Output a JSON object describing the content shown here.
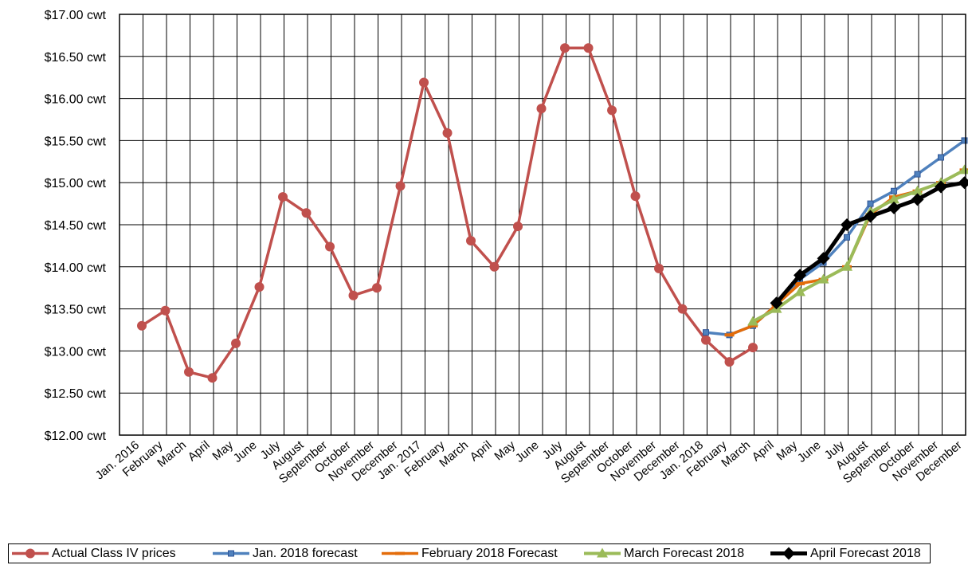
{
  "chart_data": {
    "type": "line",
    "categories": [
      "Jan. 2016",
      "February",
      "March",
      "April",
      "May",
      "June",
      "July",
      "August",
      "September",
      "October",
      "November",
      "December",
      "Jan. 2017",
      "February",
      "March",
      "April",
      "May",
      "June",
      "July",
      "August",
      "September",
      "October",
      "November",
      "December",
      "Jan. 2018",
      "February",
      "March",
      "April",
      "May",
      "June",
      "July",
      "August",
      "September",
      "October",
      "November",
      "December"
    ],
    "yticks": [
      "$12.00 cwt",
      "$12.50 cwt",
      "$13.00 cwt",
      "$13.50 cwt",
      "$14.00 cwt",
      "$14.50 cwt",
      "$15.00 cwt",
      "$15.50 cwt",
      "$16.00 cwt",
      "$16.50 cwt",
      "$17.00 cwt"
    ],
    "ylim": [
      12.0,
      17.0
    ],
    "ystep": 0.5,
    "grid": true,
    "legend_position": "bottom",
    "series": [
      {
        "name": "Actual Class IV prices",
        "color": "#C0504D",
        "marker": "circle",
        "values": [
          13.3,
          13.48,
          12.75,
          12.68,
          13.09,
          13.76,
          14.83,
          14.64,
          14.24,
          13.66,
          13.75,
          14.96,
          16.19,
          15.59,
          14.31,
          14.0,
          14.48,
          15.88,
          16.6,
          16.6,
          15.86,
          14.84,
          13.98,
          13.5,
          13.13,
          12.87,
          13.04,
          null,
          null,
          null,
          null,
          null,
          null,
          null,
          null,
          null
        ]
      },
      {
        "name": "Jan. 2018 forecast",
        "color": "#4F81BD",
        "marker": "square",
        "values": [
          null,
          null,
          null,
          null,
          null,
          null,
          null,
          null,
          null,
          null,
          null,
          null,
          null,
          null,
          null,
          null,
          null,
          null,
          null,
          null,
          null,
          null,
          null,
          null,
          13.22,
          13.19,
          13.3,
          13.55,
          13.85,
          14.05,
          14.35,
          14.75,
          14.9,
          15.1,
          15.3,
          15.5
        ]
      },
      {
        "name": "February 2018 Forecast",
        "color": "#E36C0A",
        "marker": "dash",
        "values": [
          null,
          null,
          null,
          null,
          null,
          null,
          null,
          null,
          null,
          null,
          null,
          null,
          null,
          null,
          null,
          null,
          null,
          null,
          null,
          null,
          null,
          null,
          null,
          null,
          null,
          13.19,
          13.3,
          13.55,
          13.8,
          13.85,
          14.0,
          14.62,
          14.83,
          14.9,
          15.0,
          15.15
        ]
      },
      {
        "name": "March Forecast 2018",
        "color": "#9BBB59",
        "marker": "triangle",
        "values": [
          null,
          null,
          null,
          null,
          null,
          null,
          null,
          null,
          null,
          null,
          null,
          null,
          null,
          null,
          null,
          null,
          null,
          null,
          null,
          null,
          null,
          null,
          null,
          null,
          null,
          null,
          13.35,
          13.5,
          13.7,
          13.85,
          14.0,
          14.65,
          14.8,
          14.9,
          15.0,
          15.15
        ]
      },
      {
        "name": "April Forecast 2018",
        "color": "#000000",
        "marker": "diamond",
        "values": [
          null,
          null,
          null,
          null,
          null,
          null,
          null,
          null,
          null,
          null,
          null,
          null,
          null,
          null,
          null,
          null,
          null,
          null,
          null,
          null,
          null,
          null,
          null,
          null,
          null,
          null,
          null,
          13.57,
          13.9,
          14.1,
          14.5,
          14.6,
          14.7,
          14.8,
          14.95,
          15.0
        ]
      }
    ]
  }
}
